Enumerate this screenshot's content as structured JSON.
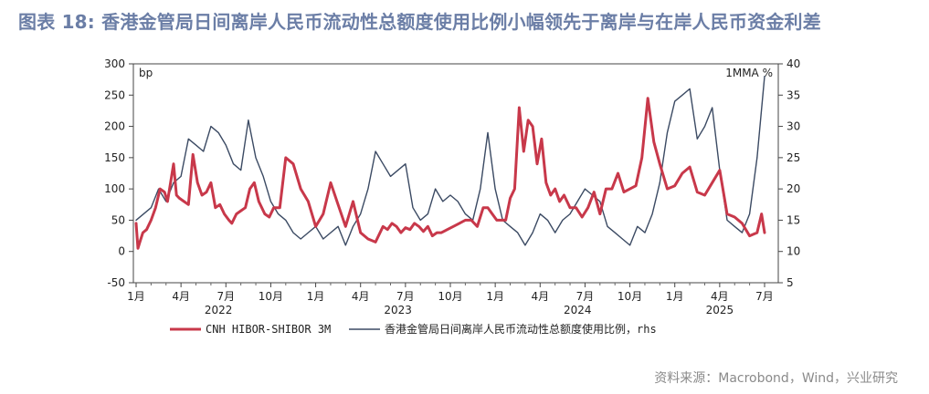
{
  "title": "图表 18: 香港金管局日间离岸人民币流动性总额度使用比例小幅领先于离岸与在岸人民币资金利差",
  "source": "资料来源：Macrobond，Wind，兴业研究",
  "chart_data": {
    "type": "line",
    "left_axis_unit": "bp",
    "right_axis_unit": "1MMA %",
    "ylim_left": [
      -50,
      300
    ],
    "yticks_left": [
      -50,
      0,
      50,
      100,
      150,
      200,
      250,
      300
    ],
    "ylim_right": [
      5,
      40
    ],
    "yticks_right": [
      5,
      10,
      15,
      20,
      25,
      30,
      35,
      40
    ],
    "x_tick_labels": [
      "1月",
      "4月",
      "7月",
      "10月",
      "1月",
      "4月",
      "7月",
      "10月",
      "1月",
      "4月",
      "7月",
      "10月",
      "1月",
      "4月",
      "7月"
    ],
    "year_labels": [
      "2022",
      "2023",
      "2024",
      "2025"
    ],
    "series": [
      {
        "name": "CNH HIBOR-SHIBOR 3M",
        "axis": "left",
        "color": "#c8384a",
        "x": [
          0.0,
          0.12,
          0.25,
          0.45,
          0.7,
          1.0,
          1.3,
          1.6,
          1.9,
          2.1,
          2.3,
          2.5,
          2.7,
          2.9,
          3.2,
          3.5,
          3.8,
          4.1,
          4.4,
          4.7,
          5.0,
          5.3,
          5.6,
          5.9,
          6.2,
          6.4,
          6.7,
          7.0,
          7.3,
          7.6,
          7.9,
          8.2,
          8.6,
          8.9,
          9.2,
          9.6,
          10.0,
          10.5,
          11.0,
          11.5,
          12.0,
          12.5,
          13.0,
          13.5,
          14.0,
          14.5,
          15.0,
          15.5,
          16.0,
          16.5,
          16.8,
          17.1,
          17.4,
          17.7,
          18.0,
          18.3,
          18.6,
          18.9,
          19.2,
          19.5,
          19.8,
          20.1,
          20.4,
          20.8,
          21.2,
          21.6,
          22.0,
          22.4,
          22.8,
          23.2,
          23.5,
          23.8,
          24.1,
          24.4,
          24.7,
          25.0,
          25.3,
          25.6,
          25.9,
          26.2,
          26.5,
          26.8,
          27.1,
          27.4,
          27.7,
          28.0,
          28.3,
          28.6,
          29.0,
          29.4,
          29.8,
          30.2,
          30.6,
          31.0,
          31.4,
          31.8,
          32.2,
          32.6,
          33.0,
          33.4,
          33.8,
          34.2,
          34.6,
          35.0,
          35.5,
          36.0,
          36.5,
          37.0,
          37.5,
          38.0,
          38.5,
          39.0,
          39.5,
          40.0,
          40.5,
          41.0,
          41.5,
          41.8,
          42.0
        ],
        "values": [
          45,
          5,
          15,
          30,
          35,
          50,
          70,
          100,
          95,
          80,
          110,
          140,
          90,
          85,
          80,
          75,
          155,
          110,
          90,
          95,
          110,
          70,
          75,
          60,
          50,
          45,
          60,
          65,
          70,
          100,
          110,
          80,
          60,
          55,
          70,
          70,
          150,
          140,
          100,
          80,
          40,
          60,
          110,
          75,
          40,
          80,
          30,
          20,
          15,
          40,
          35,
          45,
          40,
          30,
          38,
          35,
          45,
          40,
          32,
          40,
          25,
          30,
          30,
          35,
          40,
          45,
          50,
          50,
          40,
          70,
          70,
          60,
          50,
          50,
          50,
          85,
          100,
          230,
          160,
          210,
          200,
          140,
          180,
          110,
          90,
          100,
          80,
          90,
          70,
          70,
          55,
          70,
          95,
          60,
          100,
          100,
          125,
          95,
          100,
          105,
          150,
          245,
          175,
          140,
          100,
          105,
          125,
          135,
          95,
          90,
          110,
          130,
          60,
          55,
          45,
          25,
          30,
          60,
          30
        ],
        "label": "CNH HIBOR-SHIBOR 3M"
      },
      {
        "name": "香港金管局日间离岸人民币流动性总额度使用比例, rhs",
        "axis": "right",
        "color": "#3b4a63",
        "x": [
          0.0,
          0.5,
          1.0,
          1.5,
          2.0,
          2.5,
          3.0,
          3.5,
          4.0,
          4.5,
          5.0,
          5.5,
          6.0,
          6.5,
          7.0,
          7.5,
          8.0,
          8.5,
          9.0,
          9.5,
          10.0,
          10.5,
          11.0,
          11.5,
          12.0,
          12.5,
          13.0,
          13.5,
          14.0,
          14.5,
          15.0,
          15.5,
          16.0,
          16.5,
          17.0,
          17.5,
          18.0,
          18.5,
          19.0,
          19.5,
          20.0,
          20.5,
          21.0,
          21.5,
          22.0,
          22.5,
          23.0,
          23.5,
          24.0,
          24.5,
          25.0,
          25.5,
          26.0,
          26.5,
          27.0,
          27.5,
          28.0,
          28.5,
          29.0,
          29.5,
          30.0,
          30.5,
          31.0,
          31.5,
          32.0,
          32.5,
          33.0,
          33.5,
          34.0,
          34.5,
          35.0,
          35.5,
          36.0,
          36.5,
          37.0,
          37.5,
          38.0,
          38.5,
          39.0,
          39.5,
          40.0,
          40.5,
          41.0,
          41.5,
          42.0
        ],
        "values": [
          15,
          16,
          17,
          20,
          18,
          21,
          22,
          28,
          27,
          26,
          30,
          29,
          27,
          24,
          23,
          31,
          25,
          22,
          18,
          16,
          15,
          13,
          12,
          13,
          14,
          12,
          13,
          14,
          11,
          14,
          16,
          20,
          26,
          24,
          22,
          23,
          24,
          17,
          15,
          16,
          20,
          18,
          19,
          18,
          16,
          15,
          20,
          29,
          20,
          15,
          14,
          13,
          11,
          13,
          16,
          15,
          13,
          15,
          16,
          18,
          20,
          19,
          18,
          14,
          13,
          12,
          11,
          14,
          13,
          16,
          21,
          29,
          34,
          35,
          36,
          28,
          30,
          33,
          23,
          15,
          14,
          13,
          16,
          25,
          38
        ],
        "label": "香港金管局日间离岸人民币流动性总额度使用比例，rhs"
      }
    ]
  }
}
